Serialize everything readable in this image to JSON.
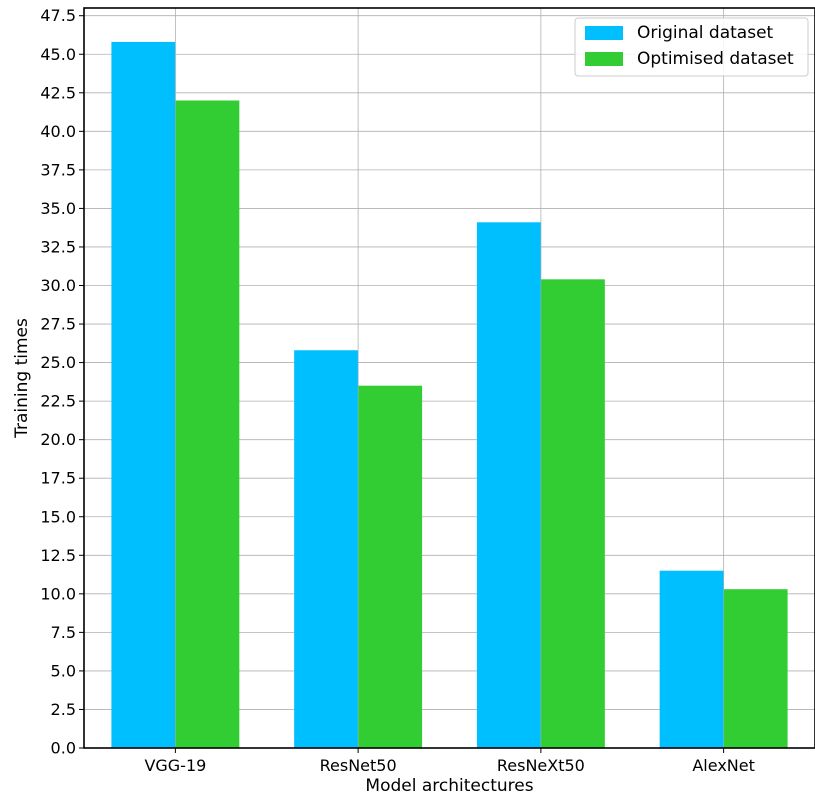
{
  "chart_data": {
    "type": "bar",
    "categories": [
      "VGG-19",
      "ResNet50",
      "ResNeXt50",
      "AlexNet"
    ],
    "series": [
      {
        "name": "Original dataset",
        "values": [
          45.8,
          25.8,
          34.1,
          11.5
        ],
        "color": "#00bfff"
      },
      {
        "name": "Optimised dataset",
        "values": [
          42.0,
          23.5,
          30.4,
          10.3
        ],
        "color": "#32cd32"
      }
    ],
    "title": "",
    "xlabel": "Model architectures",
    "ylabel": "Training times",
    "ylim": [
      0,
      48
    ],
    "yticks": [
      "0.0",
      "2.5",
      "5.0",
      "7.5",
      "10.0",
      "12.5",
      "15.0",
      "17.5",
      "20.0",
      "22.5",
      "25.0",
      "27.5",
      "30.0",
      "32.5",
      "35.0",
      "37.5",
      "40.0",
      "42.5",
      "45.0",
      "47.5"
    ],
    "grid": true,
    "legend_position": "top-right"
  }
}
